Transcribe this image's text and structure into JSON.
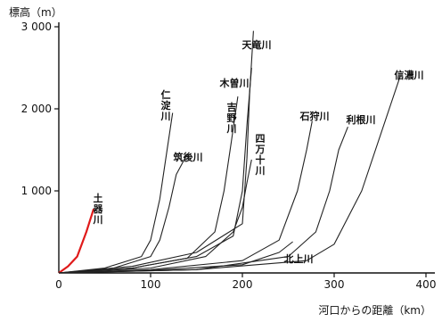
{
  "chart_data": {
    "type": "line",
    "title": "",
    "ylabel": "標高（m）",
    "xlabel": "河口からの距離（km）",
    "xlim": [
      0,
      400
    ],
    "ylim": [
      0,
      3000
    ],
    "x_ticks": [
      "0",
      "100",
      "200",
      "300",
      "400"
    ],
    "y_ticks": [
      "1 000",
      "2 000",
      "3 000"
    ],
    "grid": false,
    "series": [
      {
        "name": "土器川",
        "color": "#e01a1a",
        "x": [
          0,
          10,
          20,
          30,
          38
        ],
        "y": [
          0,
          80,
          200,
          500,
          780
        ]
      },
      {
        "name": "仁淀川",
        "color": "#222222",
        "x": [
          0,
          50,
          90,
          100,
          110,
          118,
          124
        ],
        "y": [
          0,
          60,
          200,
          400,
          900,
          1500,
          1950
        ]
      },
      {
        "name": "筑後川",
        "color": "#222222",
        "x": [
          0,
          60,
          100,
          110,
          120,
          128,
          140
        ],
        "y": [
          0,
          60,
          200,
          400,
          800,
          1200,
          1450
        ]
      },
      {
        "name": "天竜川",
        "color": "#222222",
        "x": [
          0,
          80,
          150,
          200,
          205,
          208,
          212
        ],
        "y": [
          0,
          80,
          250,
          600,
          1400,
          2200,
          2950
        ]
      },
      {
        "name": "木曽川",
        "color": "#222222",
        "x": [
          0,
          80,
          150,
          190,
          200,
          205,
          210
        ],
        "y": [
          0,
          60,
          200,
          450,
          1000,
          1800,
          2500
        ]
      },
      {
        "name": "吉野川",
        "color": "#222222",
        "x": [
          0,
          80,
          140,
          170,
          180,
          188,
          195
        ],
        "y": [
          0,
          60,
          180,
          500,
          1000,
          1600,
          2150
        ]
      },
      {
        "name": "四万十川",
        "color": "#222222",
        "x": [
          0,
          100,
          160,
          190,
          200,
          205,
          210
        ],
        "y": [
          0,
          60,
          200,
          500,
          800,
          1100,
          1380
        ]
      },
      {
        "name": "石狩川",
        "color": "#222222",
        "x": [
          0,
          100,
          200,
          240,
          260,
          270,
          276
        ],
        "y": [
          0,
          40,
          150,
          400,
          1000,
          1500,
          1850
        ]
      },
      {
        "name": "利根川",
        "color": "#222222",
        "x": [
          0,
          150,
          250,
          280,
          295,
          305,
          315
        ],
        "y": [
          0,
          40,
          200,
          500,
          1000,
          1500,
          1780
        ]
      },
      {
        "name": "信濃川",
        "color": "#222222",
        "x": [
          0,
          150,
          270,
          300,
          330,
          360,
          372
        ],
        "y": [
          0,
          40,
          150,
          350,
          1000,
          2000,
          2400
        ]
      },
      {
        "name": "北上川",
        "color": "#222222",
        "x": [
          0,
          100,
          200,
          240,
          255
        ],
        "y": [
          0,
          30,
          100,
          250,
          380
        ]
      }
    ]
  },
  "labels": {
    "土器川": "土\n器\n川",
    "仁淀川": "仁\n淀\n川",
    "筑後川": "筑後川",
    "天竜川": "天竜川",
    "木曽川": "木曽川",
    "吉野川": "吉\n野\n川",
    "四万十川": "四\n万\n十\n川",
    "石狩川": "石狩川",
    "利根川": "利根川",
    "信濃川": "信濃川",
    "北上川": "北上川"
  }
}
